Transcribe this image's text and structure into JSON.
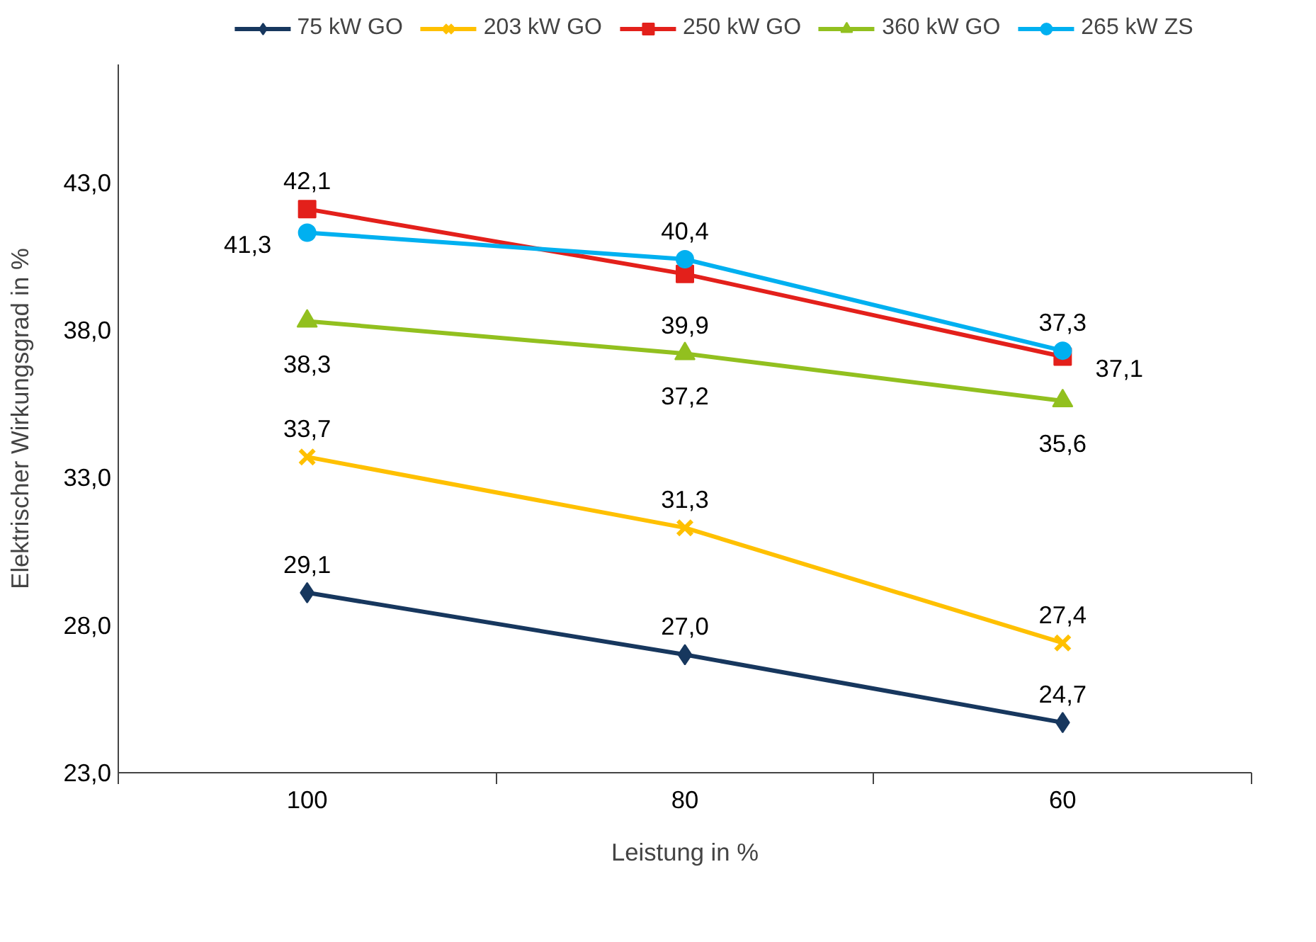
{
  "chart_data": {
    "type": "line",
    "xlabel": "Leistung in %",
    "ylabel": "Elektrischer Wirkungsgrad in %",
    "categories": [
      "100",
      "80",
      "60"
    ],
    "series": [
      {
        "name": "75 kW GO",
        "color": "#17375e",
        "marker": "diamond",
        "values": [
          29.1,
          27.0,
          24.7
        ],
        "value_labels": [
          "29,1",
          "27,0",
          "24,7"
        ]
      },
      {
        "name": "203 kW GO",
        "color": "#ffc000",
        "marker": "cross",
        "values": [
          33.7,
          31.3,
          27.4
        ],
        "value_labels": [
          "33,7",
          "31,3",
          "27,4"
        ]
      },
      {
        "name": "250 kW GO",
        "color": "#e3201b",
        "marker": "square",
        "values": [
          42.1,
          39.9,
          37.1
        ],
        "value_labels": [
          "42,1",
          "39,9",
          "37,1"
        ]
      },
      {
        "name": "360 kW GO",
        "color": "#92c01f",
        "marker": "triangle",
        "values": [
          38.3,
          37.2,
          35.6
        ],
        "value_labels": [
          "38,3",
          "37,2",
          "35,6"
        ]
      },
      {
        "name": "265 kW ZS",
        "color": "#00b0f0",
        "marker": "circle",
        "values": [
          41.3,
          40.4,
          37.3
        ],
        "value_labels": [
          "41,3",
          "40,4",
          "37,3"
        ]
      }
    ],
    "ylim": [
      23,
      47
    ],
    "yticks": [
      {
        "value": 23,
        "label": "23,0"
      },
      {
        "value": 28,
        "label": "28,0"
      },
      {
        "value": 33,
        "label": "33,0"
      },
      {
        "value": 38,
        "label": "38,0"
      },
      {
        "value": 43,
        "label": "43,0"
      }
    ],
    "grid": false,
    "legend": "top",
    "line_style": "solid"
  }
}
